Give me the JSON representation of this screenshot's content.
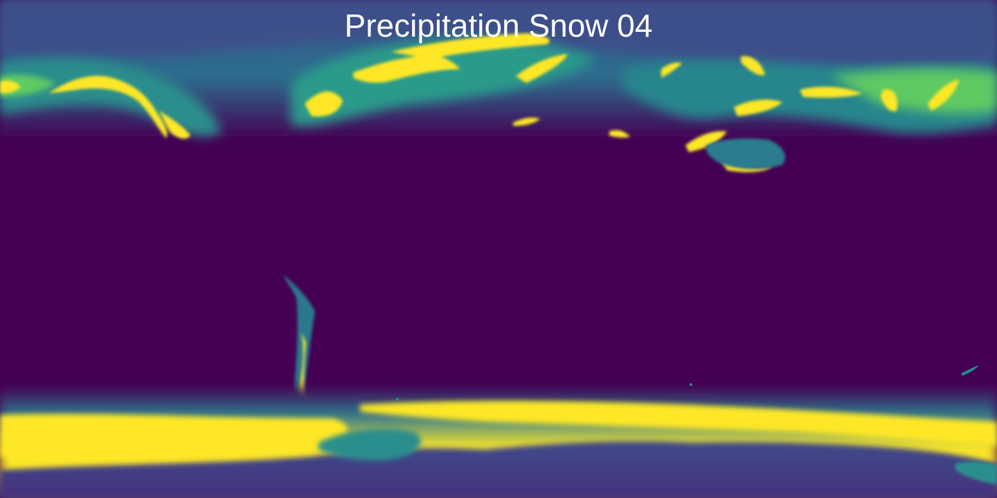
{
  "map": {
    "title": "Precipitation Snow 04",
    "projection": "equirectangular",
    "colormap": "viridis",
    "colors": {
      "background_low": "#440154",
      "low_mid": "#3b528b",
      "mid": "#21918c",
      "high_mid": "#5ec962",
      "high": "#fde725"
    }
  }
}
